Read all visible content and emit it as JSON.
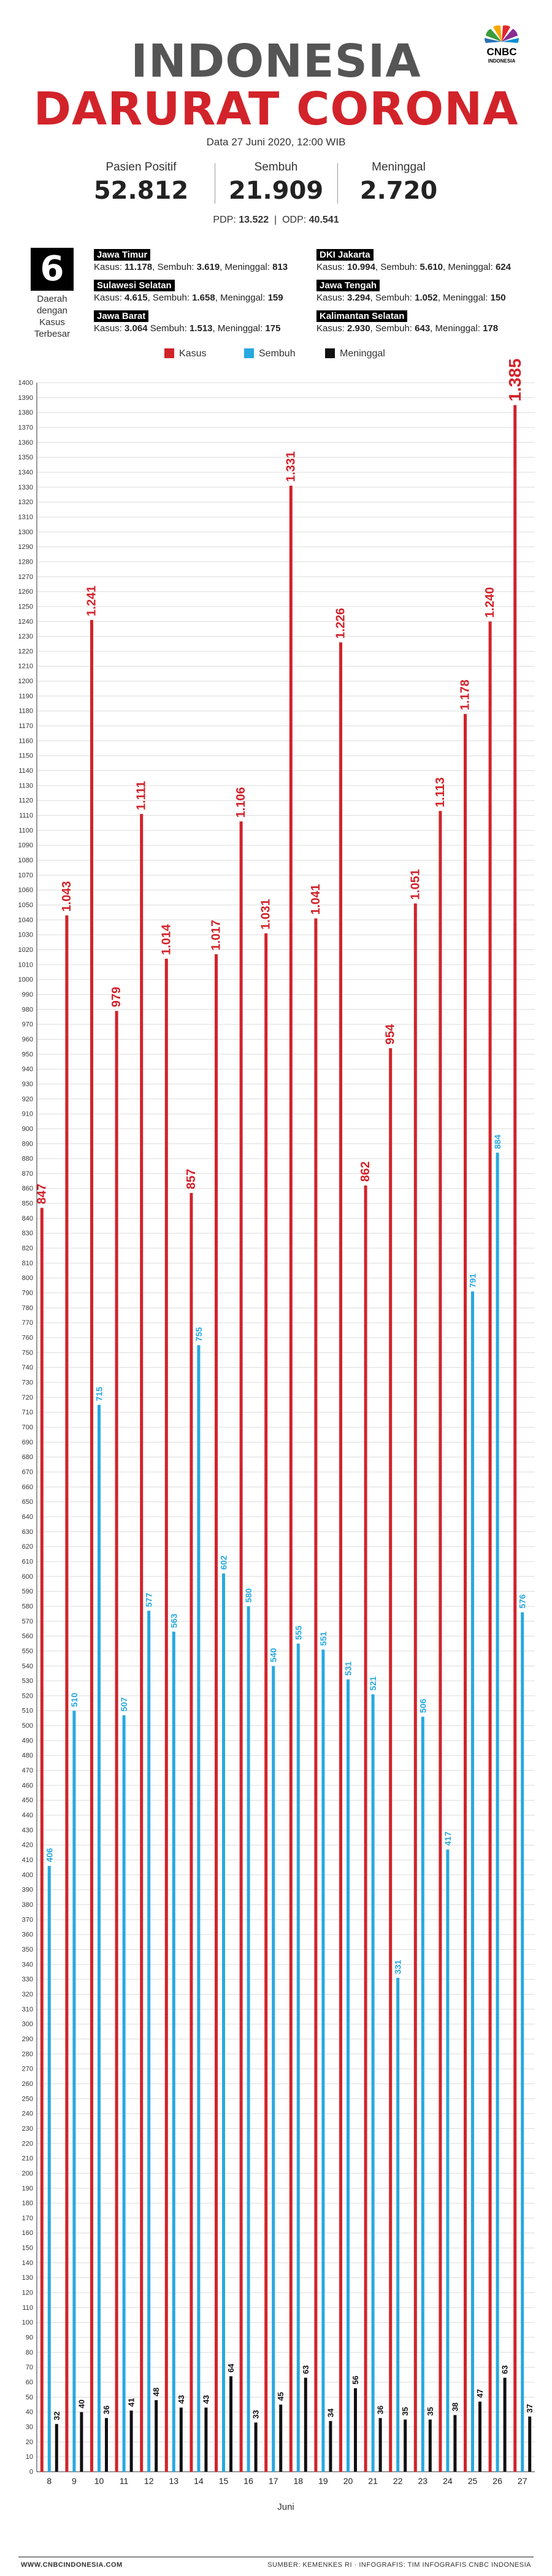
{
  "header": {
    "title_line1": "INDONESIA",
    "title_line2": "DARURAT CORONA",
    "logo_text": "CNBC",
    "logo_subtext": "INDONESIA",
    "date_text": "Data 27 Juni 2020, 12:00 WIB"
  },
  "stats": [
    {
      "label": "Pasien Positif",
      "value": "52.812"
    },
    {
      "label": "Sembuh",
      "value": "21.909"
    },
    {
      "label": "Meninggal",
      "value": "2.720"
    }
  ],
  "pdp": {
    "pdp_label": "PDP:",
    "pdp_value": "13.522",
    "sep": "|",
    "odp_label": "ODP:",
    "odp_value": "40.541"
  },
  "top_provinces": {
    "count": "6",
    "caption_line1": "Daerah",
    "caption_line2": "dengan",
    "caption_line3": "Kasus",
    "caption_line4": "Terbesar",
    "items": [
      {
        "name": "Jawa Timur",
        "kasus_label": "Kasus:",
        "kasus": "11.178",
        "sembuh_label": "Sembuh:",
        "sembuh": "3.619",
        "meninggal_label": "Meninggal:",
        "meninggal": "813"
      },
      {
        "name": "DKI Jakarta",
        "kasus_label": "Kasus:",
        "kasus": "10.994",
        "sembuh_label": "Sembuh:",
        "sembuh": "5.610",
        "meninggal_label": "Meninggal:",
        "meninggal": "624"
      },
      {
        "name": "Sulawesi Selatan",
        "kasus_label": "Kasus:",
        "kasus": "4.615",
        "sembuh_label": "Sembuh:",
        "sembuh": "1.658",
        "meninggal_label": "Meninggal:",
        "meninggal": "159"
      },
      {
        "name": "Jawa Tengah",
        "kasus_label": "Kasus:",
        "kasus": "3.294",
        "sembuh_label": "Sembuh:",
        "sembuh": "1.052",
        "meninggal_label": "Meninggal:",
        "meninggal": "150"
      },
      {
        "name": "Jawa Barat",
        "kasus_label": "Kasus:",
        "kasus": "3.064",
        "sembuh_label": "Sembuh:",
        "sembuh": "1.513",
        "meninggal_label": "Meninggal:",
        "meninggal": "175"
      },
      {
        "name": "Kalimantan Selatan",
        "kasus_label": "Kasus:",
        "kasus": "2.930",
        "sembuh_label": "Sembuh:",
        "sembuh": "643",
        "meninggal_label": "Meninggal:",
        "meninggal": "178"
      }
    ]
  },
  "footer": {
    "left": "WWW.CNBCINDONESIA.COM",
    "right": "SUMBER: KEMENKES RI · INFOGRAFIS: TIM INFOGRAFIS CNBC INDONESIA"
  },
  "chart_data": {
    "type": "bar",
    "xlabel": "Juni",
    "ylabel": "",
    "ylim": [
      0,
      1400
    ],
    "ytick_step": 10,
    "grid": true,
    "legend_position": "top",
    "categories": [
      "8",
      "9",
      "10",
      "11",
      "12",
      "13",
      "14",
      "15",
      "16",
      "17",
      "18",
      "19",
      "20",
      "21",
      "22",
      "23",
      "24",
      "25",
      "26",
      "27"
    ],
    "series": [
      {
        "name": "Kasus",
        "color": "#d2232a",
        "values": [
          847,
          1043,
          1241,
          979,
          1111,
          1014,
          857,
          1017,
          1106,
          1031,
          1331,
          1041,
          1226,
          862,
          954,
          1051,
          1113,
          1178,
          1240,
          1385
        ],
        "labels": [
          "847",
          "1.043",
          "1.241",
          "979",
          "1.111",
          "1.014",
          "857",
          "1.017",
          "1.106",
          "1.031",
          "1.331",
          "1.041",
          "1.226",
          "862",
          "954",
          "1.051",
          "1.113",
          "1.178",
          "1.240",
          "1.385"
        ]
      },
      {
        "name": "Sembuh",
        "color": "#27a9e1",
        "values": [
          406,
          510,
          715,
          507,
          577,
          563,
          755,
          602,
          580,
          540,
          555,
          551,
          531,
          521,
          331,
          506,
          417,
          791,
          884,
          576
        ],
        "labels": [
          "406",
          "510",
          "715",
          "507",
          "577",
          "563",
          "755",
          "602",
          "580",
          "540",
          "555",
          "551",
          "531",
          "521",
          "331",
          "506",
          "417",
          "791",
          "884",
          "576"
        ]
      },
      {
        "name": "Meninggal",
        "color": "#111111",
        "values": [
          32,
          40,
          36,
          41,
          48,
          43,
          43,
          64,
          33,
          45,
          63,
          34,
          56,
          36,
          35,
          35,
          38,
          47,
          63,
          37
        ],
        "labels": [
          "32",
          "40",
          "36",
          "41",
          "48",
          "43",
          "43",
          "64",
          "33",
          "45",
          "63",
          "34",
          "56",
          "36",
          "35",
          "35",
          "38",
          "47",
          "63",
          "37"
        ]
      }
    ]
  }
}
